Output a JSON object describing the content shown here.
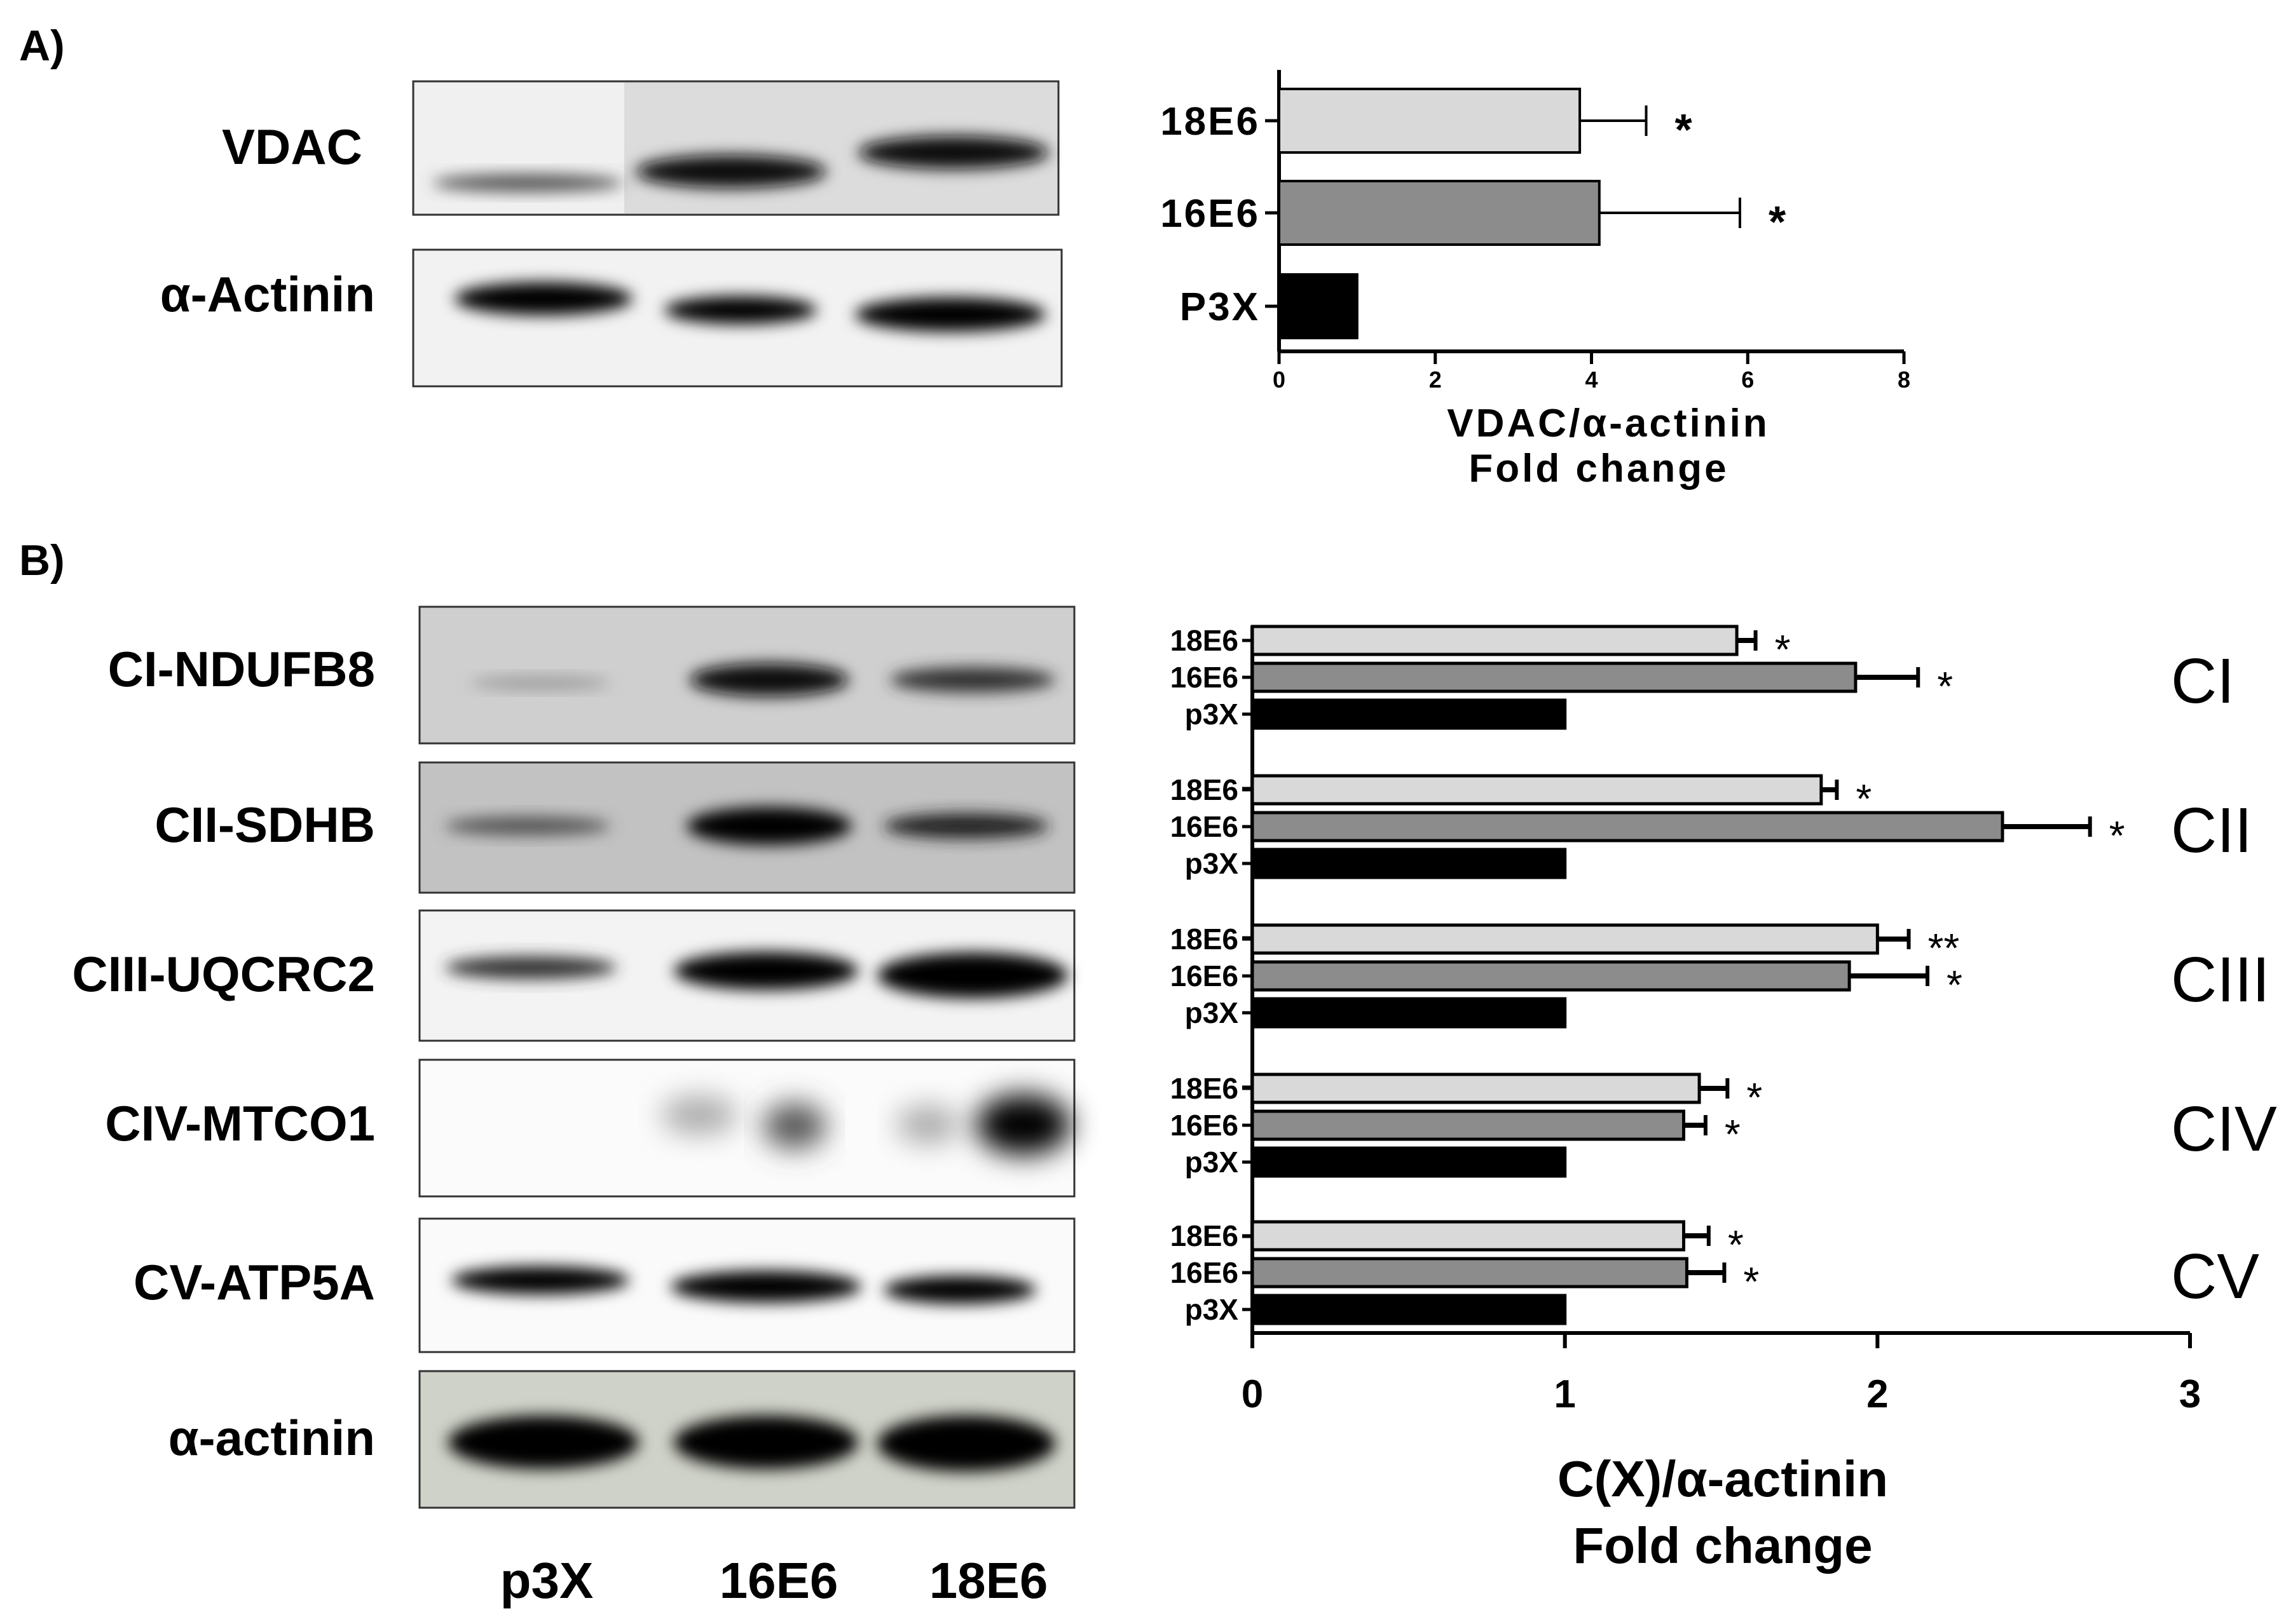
{
  "panels": {
    "a": "A)",
    "b": "B)"
  },
  "blot_a": {
    "rows": [
      "VDAC",
      "α-Actinin"
    ]
  },
  "blot_b": {
    "rows": [
      "CI-NDUFB8",
      "CII-SDHB",
      "CIII-UQCRC2",
      "CIV-MTCO1",
      "CV-ATP5A",
      "α-actinin"
    ],
    "lanes": [
      "p3X",
      "16E6",
      "18E6"
    ]
  },
  "chart_data": [
    {
      "type": "bar",
      "orientation": "horizontal",
      "categories": [
        "18E6",
        "16E6",
        "P3X"
      ],
      "values": [
        3.85,
        4.1,
        1.0
      ],
      "errors": [
        0.85,
        1.8,
        0
      ],
      "significance": [
        "*",
        "*",
        ""
      ],
      "colors": [
        "#d9d9d9",
        "#8c8c8c",
        "#000000"
      ],
      "xlim": [
        0,
        8
      ],
      "xticks": [
        0,
        2,
        4,
        6,
        8
      ],
      "xlabel_line1": "VDAC/α-actinin",
      "xlabel_line2": "Fold change"
    },
    {
      "type": "bar",
      "orientation": "horizontal",
      "groups": [
        {
          "name": "CI",
          "categories": [
            "18E6",
            "16E6",
            "p3X"
          ],
          "values": [
            1.55,
            1.93,
            1.0
          ],
          "errors": [
            0.06,
            0.2,
            0
          ],
          "significance": [
            "*",
            "*",
            ""
          ]
        },
        {
          "name": "CII",
          "categories": [
            "18E6",
            "16E6",
            "p3X"
          ],
          "values": [
            1.82,
            2.4,
            1.0
          ],
          "errors": [
            0.05,
            0.28,
            0
          ],
          "significance": [
            "*",
            "*",
            ""
          ]
        },
        {
          "name": "CIII",
          "categories": [
            "18E6",
            "16E6",
            "p3X"
          ],
          "values": [
            2.0,
            1.91,
            1.0
          ],
          "errors": [
            0.1,
            0.25,
            0
          ],
          "significance": [
            "**",
            "*",
            ""
          ]
        },
        {
          "name": "CIV",
          "categories": [
            "18E6",
            "16E6",
            "p3X"
          ],
          "values": [
            1.43,
            1.38,
            1.0
          ],
          "errors": [
            0.09,
            0.07,
            0
          ],
          "significance": [
            "*",
            "*",
            ""
          ]
        },
        {
          "name": "CV",
          "categories": [
            "18E6",
            "16E6",
            "p3X"
          ],
          "values": [
            1.38,
            1.39,
            1.0
          ],
          "errors": [
            0.08,
            0.12,
            0
          ],
          "significance": [
            "*",
            "*",
            ""
          ]
        }
      ],
      "colors": [
        "#d9d9d9",
        "#8c8c8c",
        "#000000"
      ],
      "xlim": [
        0,
        3
      ],
      "xticks": [
        0,
        1,
        2,
        3
      ],
      "xlabel_line1": "C(X)/α-actinin",
      "xlabel_line2": "Fold change"
    }
  ]
}
